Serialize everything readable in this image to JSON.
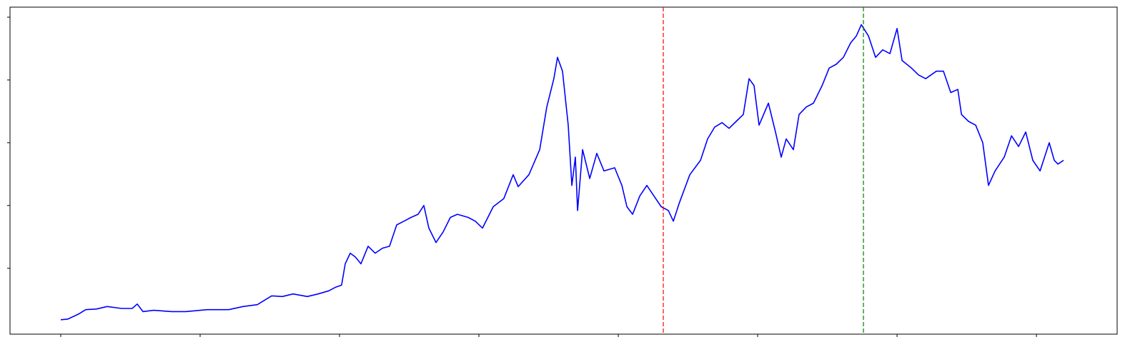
{
  "chart_data": {
    "type": "line",
    "x": [
      0,
      51,
      128,
      179,
      256,
      333,
      436,
      513,
      549,
      590,
      667,
      795,
      897,
      1051,
      1205,
      1308,
      1410,
      1513,
      1590,
      1667,
      1769,
      1846,
      1923,
      1974,
      2015,
      2041,
      2077,
      2113,
      2154,
      2205,
      2256,
      2308,
      2359,
      2410,
      2462,
      2513,
      2564,
      2605,
      2641,
      2692,
      2744,
      2795,
      2846,
      2923,
      2974,
      3026,
      3103,
      3179,
      3246,
      3282,
      3359,
      3436,
      3487,
      3538,
      3564,
      3600,
      3641,
      3667,
      3692,
      3708,
      3744,
      3795,
      3846,
      3897,
      3974,
      4026,
      4062,
      4103,
      4154,
      4205,
      4256,
      4308,
      4359,
      4395,
      4436,
      4513,
      4590,
      4641,
      4692,
      4744,
      4795,
      4846,
      4897,
      4938,
      4974,
      5010,
      5077,
      5128,
      5169,
      5205,
      5256,
      5297,
      5349,
      5400,
      5462,
      5513,
      5564,
      5615,
      5667,
      5708,
      5744,
      5795,
      5846,
      5897,
      5949,
      6000,
      6036,
      6103,
      6154,
      6205,
      6282,
      6333,
      6385,
      6436,
      6462,
      6513,
      6564,
      6615,
      6656,
      6703,
      6769,
      6821,
      6872,
      6923,
      6974,
      7026,
      7092,
      7128,
      7154,
      7195
    ],
    "series": [
      {
        "color": "#0000ff",
        "values": [
          0.18,
          0.19,
          0.27,
          0.34,
          0.35,
          0.39,
          0.36,
          0.36,
          0.43,
          0.31,
          0.33,
          0.31,
          0.31,
          0.34,
          0.34,
          0.39,
          0.42,
          0.56,
          0.55,
          0.59,
          0.55,
          0.59,
          0.64,
          0.7,
          0.73,
          1.07,
          1.24,
          1.18,
          1.07,
          1.35,
          1.24,
          1.32,
          1.35,
          1.69,
          1.75,
          1.81,
          1.86,
          2.0,
          1.64,
          1.41,
          1.58,
          1.81,
          1.86,
          1.81,
          1.75,
          1.64,
          1.98,
          2.11,
          2.49,
          2.3,
          2.49,
          2.89,
          3.57,
          4.02,
          4.36,
          4.14,
          3.28,
          2.32,
          2.77,
          1.92,
          2.89,
          2.43,
          2.83,
          2.55,
          2.6,
          2.32,
          1.98,
          1.86,
          2.15,
          2.32,
          2.15,
          1.98,
          1.92,
          1.75,
          2.03,
          2.49,
          2.72,
          3.06,
          3.25,
          3.32,
          3.23,
          3.34,
          3.45,
          4.02,
          3.91,
          3.28,
          3.63,
          3.17,
          2.77,
          3.06,
          2.89,
          3.45,
          3.57,
          3.63,
          3.91,
          4.19,
          4.25,
          4.36,
          4.59,
          4.7,
          4.88,
          4.7,
          4.36,
          4.48,
          4.42,
          4.82,
          4.31,
          4.19,
          4.08,
          4.02,
          4.14,
          4.14,
          3.8,
          3.85,
          3.45,
          3.34,
          3.28,
          3.0,
          2.32,
          2.55,
          2.77,
          3.11,
          2.94,
          3.17,
          2.72,
          2.55,
          3.0,
          2.72,
          2.66,
          2.72
        ]
      }
    ],
    "vlines": [
      {
        "x": 4323,
        "color": "#ff0000",
        "style": "dashed"
      },
      {
        "x": 5759,
        "color": "#008000",
        "style": "dashed"
      }
    ],
    "xlim": [
      -364,
      7579
    ],
    "ylim": [
      -0.05,
      5.16
    ],
    "xticks": [
      0,
      1000,
      2000,
      3000,
      4000,
      5000,
      6000,
      7000
    ],
    "yticks": [
      1,
      2,
      3,
      4,
      5
    ]
  }
}
